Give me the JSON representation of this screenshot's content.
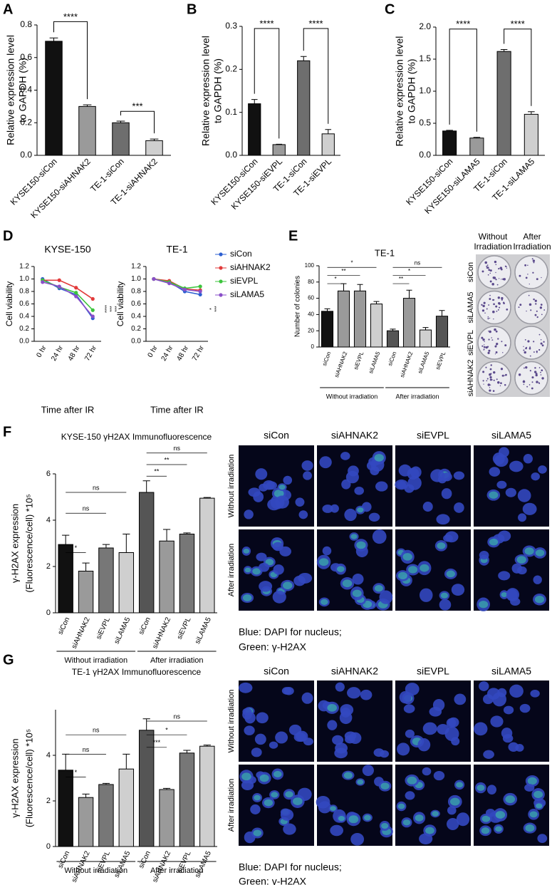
{
  "panel_labels": [
    "A",
    "B",
    "C",
    "D",
    "E",
    "F",
    "G"
  ],
  "chart_data": [
    {
      "type": "bar",
      "ylabel": [
        "Relative expression level",
        "to GAPDH (%)"
      ],
      "categories": [
        "KYSE150-siCon",
        "KYSE150-siAHNAK2",
        "TE-1-siCon",
        "TE-1-siAHNAK2"
      ],
      "values": [
        0.7,
        0.3,
        0.2,
        0.09
      ],
      "errors": [
        0.02,
        0.01,
        0.01,
        0.01
      ],
      "colors": [
        "#111111",
        "#9a9a9a",
        "#6e6e6e",
        "#cfcfcf"
      ],
      "ylim": [
        0,
        0.8
      ],
      "yticks": [
        {
          "value": 0,
          "label": "0.0"
        },
        0.2,
        0.4,
        0.6,
        0.8
      ],
      "significance": [
        {
          "label": "****",
          "from": 0,
          "to": 1,
          "level": 0.82
        },
        {
          "label": "***",
          "from": 2,
          "to": 3,
          "level": 0.27
        }
      ]
    },
    {
      "type": "bar",
      "ylabel": [
        "Relative expression level",
        "to GAPDH (%)"
      ],
      "categories": [
        "KYSE150-siCon",
        "KYSE150-siEVPL",
        "TE-1-siCon",
        "TE-1-siEVPL"
      ],
      "values": [
        0.12,
        0.025,
        0.22,
        0.05
      ],
      "errors": [
        0.01,
        0.001,
        0.01,
        0.01
      ],
      "colors": [
        "#111111",
        "#9a9a9a",
        "#6e6e6e",
        "#cfcfcf"
      ],
      "ylim": [
        0,
        0.3
      ],
      "yticks": [
        {
          "value": 0,
          "label": "0.0"
        },
        0.1,
        0.2,
        0.3
      ],
      "significance": [
        {
          "label": "****",
          "from": 0,
          "to": 1,
          "level": 0.295
        },
        {
          "label": "****",
          "from": 2,
          "to": 3,
          "level": 0.295
        }
      ]
    },
    {
      "type": "bar",
      "ylabel": [
        "Relative expression level",
        "to GAPDH (%)"
      ],
      "categories": [
        "KYSE150-siCon",
        "KYSE150-siLAMA5",
        "TE-1-siCon",
        "TE-1-siLAMA5"
      ],
      "values": [
        0.38,
        0.27,
        1.62,
        0.64
      ],
      "errors": [
        0.01,
        0.01,
        0.03,
        0.04
      ],
      "colors": [
        "#111111",
        "#9a9a9a",
        "#6e6e6e",
        "#cfcfcf"
      ],
      "ylim": [
        0,
        2
      ],
      "yticks": [
        {
          "value": 0,
          "label": "0.0"
        },
        0.5,
        {
          "value": 1,
          "label": "1.0"
        },
        1.5,
        {
          "value": 2,
          "label": "2.0"
        }
      ],
      "significance": [
        {
          "label": "****",
          "from": 0,
          "to": 1,
          "level": 1.97
        },
        {
          "label": "****",
          "from": 2,
          "to": 3,
          "level": 1.97
        }
      ]
    },
    {
      "type": "line",
      "title": "KYSE-150",
      "ylabel": [
        "Cell viability"
      ],
      "xlabel": "Time after IR",
      "categories": [
        "0 hr",
        "24 hr",
        "48 hr",
        "72 hr"
      ],
      "series": [
        {
          "color": "#2c5fd1",
          "values": [
            1.0,
            0.85,
            0.75,
            0.37
          ]
        },
        {
          "color": "#e23a3a",
          "values": [
            0.98,
            0.98,
            0.86,
            0.68
          ]
        },
        {
          "color": "#3cc43c",
          "values": [
            0.98,
            0.87,
            0.78,
            0.5
          ]
        },
        {
          "color": "#8a4fc8",
          "values": [
            0.95,
            0.88,
            0.72,
            0.4
          ]
        }
      ],
      "ylim": [
        0,
        1.2
      ],
      "yticks": [
        {
          "value": 0,
          "label": "0.0"
        },
        0.2,
        0.4,
        0.6,
        0.8,
        {
          "value": 1,
          "label": "1.0"
        },
        1.2
      ],
      "significance_labels": [
        "****",
        "***",
        "***"
      ]
    },
    {
      "type": "line",
      "title": "TE-1",
      "ylabel": [
        "Cell viability"
      ],
      "xlabel": "Time after IR",
      "categories": [
        "0 hr",
        "24 hr",
        "48 hr",
        "72 hr"
      ],
      "series": [
        {
          "name": "siCon",
          "color": "#2c5fd1",
          "values": [
            1.0,
            0.95,
            0.8,
            0.75
          ]
        },
        {
          "name": "siAHNAK2",
          "color": "#e23a3a",
          "values": [
            1.0,
            0.97,
            0.84,
            0.82
          ]
        },
        {
          "name": "siEVPL",
          "color": "#3cc43c",
          "values": [
            1.0,
            0.95,
            0.85,
            0.88
          ]
        },
        {
          "name": "siLAMA5",
          "color": "#8a4fc8",
          "values": [
            1.0,
            0.93,
            0.83,
            0.8
          ]
        }
      ],
      "ylim": [
        0,
        1.2
      ],
      "yticks": [
        {
          "value": 0,
          "label": "0.0"
        },
        0.2,
        0.4,
        0.6,
        0.8,
        {
          "value": 1,
          "label": "1.0"
        },
        1.2
      ],
      "legend": "right",
      "significance_labels": [
        "*",
        "***"
      ]
    },
    {
      "type": "bar",
      "title": "TE-1",
      "ylabel": [
        "Number of colonies"
      ],
      "categories": [
        "siCon",
        "siAHNAK2",
        "siEVPL",
        "siLAMA5",
        "siCon",
        "siAHNAK2",
        "siLAMA5",
        "siEVPL"
      ],
      "values": [
        44,
        69,
        69,
        53,
        20,
        60,
        21,
        38
      ],
      "errors": [
        3,
        9,
        8,
        3,
        2,
        10,
        3,
        7
      ],
      "colors": [
        "#111111",
        "#9a9a9a",
        "#9a9a9a",
        "#cfcfcf",
        "#555555",
        "#9a9a9a",
        "#cfcfcf",
        "#555555"
      ],
      "ylim": [
        0,
        100
      ],
      "yticks": [
        0,
        20,
        40,
        60,
        80,
        100
      ],
      "significance": [
        {
          "label": "*",
          "from": 0,
          "to": 1,
          "level": 78
        },
        {
          "label": "**",
          "from": 0,
          "to": 2,
          "level": 88
        },
        {
          "label": "*",
          "from": 0,
          "to": 3,
          "level": 98
        },
        {
          "label": "**",
          "from": 4,
          "to": 5,
          "level": 78
        },
        {
          "label": "*",
          "from": 4,
          "to": 6,
          "level": 88
        },
        {
          "label": "ns",
          "from": 4,
          "to": 7,
          "level": 98
        }
      ],
      "groups": [
        {
          "label": "Without irradiation",
          "from": 0,
          "to": 3
        },
        {
          "label": "After irradiation",
          "from": 4,
          "to": 7
        }
      ]
    },
    {
      "type": "bar",
      "title": "KYSE-150 γH2AX Immunofluorescence",
      "ylabel": [
        "γ-H2AX expression",
        "(Fluorescence/cell) *10⁵"
      ],
      "categories": [
        "siCon",
        "siAHNAK2",
        "siEVPL",
        "siLAMA5",
        "siCon",
        "siAHNAK2",
        "siEVPL",
        "siLAMA5"
      ],
      "values": [
        2.95,
        1.8,
        2.8,
        2.6,
        5.2,
        3.1,
        3.4,
        4.95
      ],
      "errors": [
        0.4,
        0.35,
        0.15,
        0.8,
        0.5,
        0.5,
        0.05,
        0.03
      ],
      "colors": [
        "#111111",
        "#9a9a9a",
        "#777777",
        "#cfcfcf",
        "#555555",
        "#9a9a9a",
        "#777777",
        "#cfcfcf"
      ],
      "ylim": [
        0,
        6
      ],
      "yticks": [
        0,
        2,
        4,
        6
      ],
      "significance": [
        {
          "label": "*",
          "from": 0,
          "to": 1,
          "level": 2.6
        },
        {
          "label": "ns",
          "from": 0,
          "to": 2,
          "level": 4.3
        },
        {
          "label": "ns",
          "from": 0,
          "to": 3,
          "level": 5.2
        },
        {
          "label": "**",
          "from": 4,
          "to": 5,
          "level": 5.9
        },
        {
          "label": "**",
          "from": 4,
          "to": 6,
          "level": 6.4
        },
        {
          "label": "ns",
          "from": 4,
          "to": 7,
          "level": 6.9
        }
      ],
      "groups": [
        {
          "label": "Without irradiation",
          "from": 0,
          "to": 3
        },
        {
          "label": "After irradiation",
          "from": 4,
          "to": 7
        }
      ]
    },
    {
      "type": "bar",
      "title": "TE-1 γH2AX Immunofluorescence",
      "ylabel": [
        "γ-H2AX expression",
        "(Fluorescence/cell) *10⁵"
      ],
      "categories": [
        "siCon",
        "siAHNAK2",
        "siEVPL",
        "siLAMA5",
        "siCon",
        "siAHNAK2",
        "siEVPL",
        "siLAMA5"
      ],
      "values": [
        3.35,
        2.15,
        2.72,
        3.4,
        5.1,
        2.5,
        4.1,
        4.4
      ],
      "errors": [
        0.7,
        0.15,
        0.05,
        0.65,
        0.5,
        0.05,
        0.12,
        0.05
      ],
      "colors": [
        "#111111",
        "#9a9a9a",
        "#777777",
        "#cfcfcf",
        "#555555",
        "#9a9a9a",
        "#777777",
        "#cfcfcf"
      ],
      "ylim": [
        0,
        6
      ],
      "yticks": [
        0,
        2,
        4
      ],
      "significance": [
        {
          "label": "*",
          "from": 0,
          "to": 1,
          "level": 3.05
        },
        {
          "label": "ns",
          "from": 0,
          "to": 2,
          "level": 4.05
        },
        {
          "label": "ns",
          "from": 0,
          "to": 3,
          "level": 4.9
        },
        {
          "label": "***",
          "from": 4,
          "to": 5,
          "level": 4.35
        },
        {
          "label": "*",
          "from": 4,
          "to": 6,
          "level": 4.9
        },
        {
          "label": "ns",
          "from": 4,
          "to": 7,
          "level": 5.5
        }
      ],
      "groups": [
        {
          "label": "Without irradiation",
          "from": 0,
          "to": 3
        },
        {
          "label": "After irradiation",
          "from": 4,
          "to": 7
        }
      ]
    }
  ],
  "colony_images": {
    "column_headers": [
      [
        "Without",
        "Irradiation"
      ],
      [
        "After",
        "Irradiation"
      ]
    ],
    "row_labels": [
      "siCon",
      "siLAMA5",
      "siEVPL",
      "siAHNAK2"
    ]
  },
  "if_images": [
    {
      "column_headers": [
        "siCon",
        "siAHNAK2",
        "siEVPL",
        "siLAMA5"
      ],
      "row_labels": [
        "Without irradiation",
        "After irradiation"
      ],
      "caption": [
        "Blue: DAPI for nucleus;",
        "Green: γ-H2AX"
      ]
    },
    {
      "column_headers": [
        "siCon",
        "siAHNAK2",
        "siEVPL",
        "siLAMA5"
      ],
      "row_labels": [
        "Without irradiation",
        "After irradiation"
      ],
      "caption": [
        "Blue: DAPI for nucleus;",
        "Green: γ-H2AX"
      ]
    }
  ]
}
